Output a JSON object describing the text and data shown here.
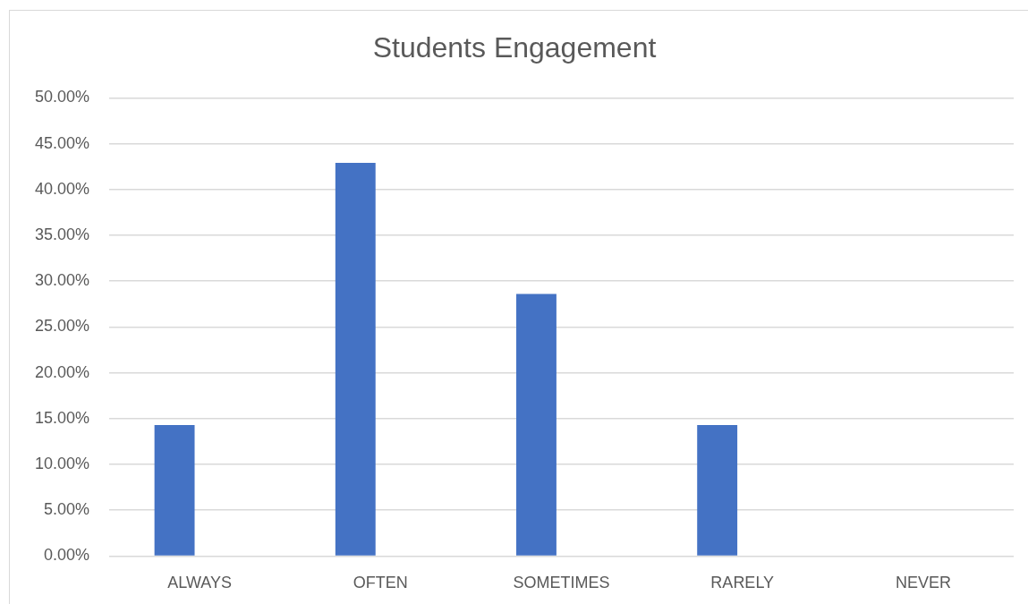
{
  "chart_data": {
    "type": "bar",
    "title": "Students Engagement",
    "categories": [
      "ALWAYS",
      "OFTEN",
      "SOMETIMES",
      "RARELY",
      "NEVER"
    ],
    "values": [
      14.3,
      42.9,
      28.6,
      14.3,
      0
    ],
    "color": "#4472c4",
    "ylim": [
      0,
      50
    ],
    "yticks": [
      {
        "value": 0,
        "label": "0.00%"
      },
      {
        "value": 5,
        "label": "5.00%"
      },
      {
        "value": 10,
        "label": "10.00%"
      },
      {
        "value": 15,
        "label": "15.00%"
      },
      {
        "value": 20,
        "label": "20.00%"
      },
      {
        "value": 25,
        "label": "25.00%"
      },
      {
        "value": 30,
        "label": "30.00%"
      },
      {
        "value": 35,
        "label": "35.00%"
      },
      {
        "value": 40,
        "label": "40.00%"
      },
      {
        "value": 45,
        "label": "45.00%"
      },
      {
        "value": 50,
        "label": "50.00%"
      }
    ],
    "grid": "y",
    "legend": false
  }
}
